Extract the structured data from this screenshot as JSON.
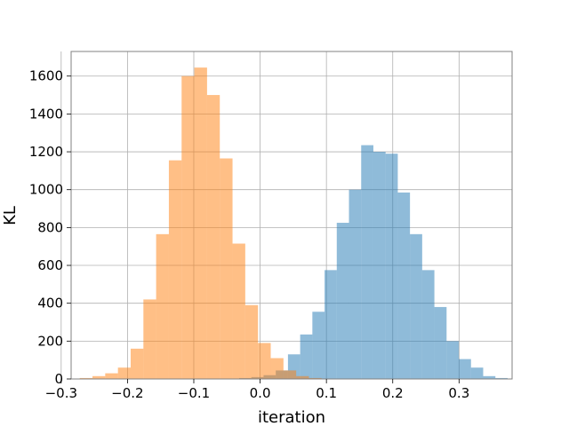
{
  "chart_data": {
    "type": "bar",
    "title": "",
    "xlabel": "iteration",
    "ylabel": "KL",
    "xlim": [
      -0.285,
      0.38
    ],
    "ylim": [
      0,
      1730
    ],
    "grid": true,
    "xticks": [
      -0.3,
      -0.2,
      -0.1,
      0.0,
      0.1,
      0.2,
      0.3
    ],
    "xtick_labels": [
      "−0.3",
      "−0.2",
      "−0.1",
      "0.0",
      "0.1",
      "0.2",
      "0.3"
    ],
    "yticks": [
      0,
      200,
      400,
      600,
      800,
      1000,
      1200,
      1400,
      1600
    ],
    "ytick_labels": [
      "0",
      "200",
      "400",
      "600",
      "800",
      "1000",
      "1200",
      "1400",
      "1600"
    ],
    "series": [
      {
        "color": "#1f77b4",
        "opacity": 0.5,
        "bin_edges": [
          -0.05,
          -0.0316,
          -0.0132,
          0.0052,
          0.0236,
          0.042,
          0.0604,
          0.0788,
          0.0972,
          0.1156,
          0.134,
          0.1524,
          0.1708,
          0.1892,
          0.2076,
          0.226,
          0.2444,
          0.2628,
          0.2812,
          0.2996,
          0.318,
          0.3364,
          0.3548,
          0.3732
        ],
        "counts": [
          2,
          5,
          10,
          20,
          45,
          130,
          235,
          355,
          575,
          825,
          1000,
          1235,
          1200,
          1190,
          985,
          765,
          575,
          380,
          200,
          105,
          60,
          15,
          5
        ]
      },
      {
        "color": "#ff7f0e",
        "opacity": 0.5,
        "bin_edges": [
          -0.272,
          -0.2528,
          -0.2336,
          -0.2144,
          -0.1952,
          -0.176,
          -0.1568,
          -0.1376,
          -0.1184,
          -0.0992,
          -0.08,
          -0.0608,
          -0.0416,
          -0.0224,
          -0.0032,
          0.016,
          0.0352,
          0.0544,
          0.0736,
          0.0928
        ],
        "counts": [
          5,
          15,
          30,
          60,
          160,
          420,
          765,
          1155,
          1600,
          1645,
          1500,
          1165,
          715,
          390,
          190,
          110,
          45,
          15,
          5
        ]
      }
    ]
  }
}
